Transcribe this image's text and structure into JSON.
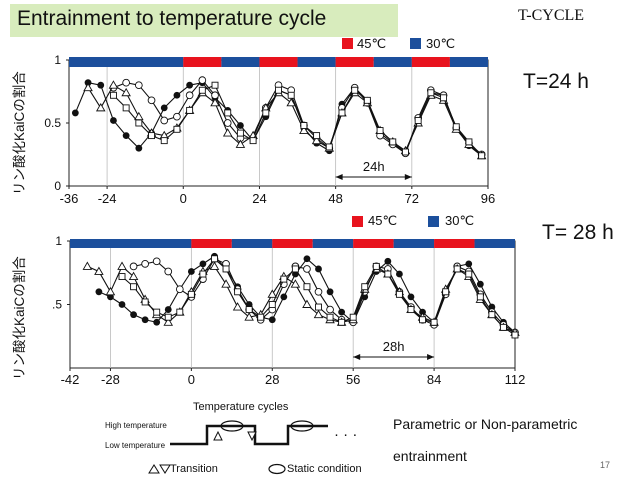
{
  "slide": {
    "title": "Entrainment to temperature cycle",
    "tag": "T-CYCLE",
    "page_number": "17",
    "bottom_text_1": "Parametric or Non-parametric",
    "bottom_text_2": "entrainment",
    "colors": {
      "title_bg": "#d8ecbd",
      "hot": "#e8131e",
      "cold": "#1c4f9c"
    }
  },
  "schematic": {
    "title": "Temperature cycles",
    "high_label": "High temperature",
    "low_label": "Low temperature",
    "ellipsis": "· · ·",
    "transition_label": "Transition",
    "static_label": "Static condition",
    "transition_icon": "triangle-up-down-icon",
    "static_icon": "ellipse-icon"
  },
  "chart_data": [
    {
      "type": "line",
      "period_label": "T=24 h",
      "ylabel": "リン酸化KaiCの割合",
      "legend": [
        {
          "label": "45℃",
          "color": "#e8131e"
        },
        {
          "label": "30℃",
          "color": "#1c4f9c"
        }
      ],
      "xlim": [
        -36,
        96
      ],
      "ylim": [
        0,
        1
      ],
      "xticks": [
        "-36",
        "-24",
        "0",
        "24",
        "48",
        "72",
        "96"
      ],
      "yticks": [
        "0",
        "0.5",
        "1"
      ],
      "temperature_bar": [
        {
          "from": -36,
          "to": 0,
          "state": "30℃"
        },
        {
          "from": 0,
          "to": 12,
          "state": "45℃"
        },
        {
          "from": 12,
          "to": 24,
          "state": "30℃"
        },
        {
          "from": 24,
          "to": 36,
          "state": "45℃"
        },
        {
          "from": 36,
          "to": 48,
          "state": "30℃"
        },
        {
          "from": 48,
          "to": 60,
          "state": "45℃"
        },
        {
          "from": 60,
          "to": 72,
          "state": "30℃"
        },
        {
          "from": 72,
          "to": 84,
          "state": "45℃"
        },
        {
          "from": 84,
          "to": 96,
          "state": "30℃"
        }
      ],
      "period_arrow": {
        "from": 48,
        "to": 72,
        "label": "24h"
      },
      "series": [
        {
          "marker": "filled-circle",
          "x": [
            -34,
            -30,
            -26,
            -22,
            -18,
            -14,
            -10,
            -6,
            -2,
            2,
            6,
            10,
            14,
            18,
            22,
            26,
            30,
            34,
            38,
            42,
            46,
            50,
            54,
            58,
            62,
            66,
            70,
            74,
            78,
            82,
            86,
            90,
            94
          ],
          "y": [
            0.58,
            0.82,
            0.8,
            0.52,
            0.4,
            0.3,
            0.42,
            0.62,
            0.72,
            0.8,
            0.82,
            0.7,
            0.6,
            0.48,
            0.36,
            0.55,
            0.76,
            0.72,
            0.46,
            0.34,
            0.28,
            0.65,
            0.78,
            0.68,
            0.42,
            0.34,
            0.26,
            0.52,
            0.74,
            0.72,
            0.46,
            0.32,
            0.24
          ]
        },
        {
          "marker": "open-circle",
          "x": [
            -22,
            -18,
            -14,
            -10,
            -6,
            -2,
            2,
            6,
            10,
            14,
            18,
            22,
            26,
            30,
            34,
            38,
            42,
            46,
            50,
            54,
            58,
            62,
            66,
            70,
            74,
            78,
            82,
            86,
            90,
            94
          ],
          "y": [
            0.78,
            0.82,
            0.8,
            0.68,
            0.52,
            0.55,
            0.72,
            0.84,
            0.72,
            0.5,
            0.38,
            0.38,
            0.62,
            0.8,
            0.76,
            0.48,
            0.38,
            0.3,
            0.62,
            0.78,
            0.66,
            0.4,
            0.33,
            0.26,
            0.54,
            0.76,
            0.72,
            0.46,
            0.34,
            0.25
          ]
        },
        {
          "marker": "open-triangle",
          "x": [
            -30,
            -26,
            -22,
            -18,
            -14,
            -10,
            -6,
            -2,
            2,
            6,
            10,
            14,
            18,
            22,
            26,
            30,
            34,
            38,
            42,
            46,
            50,
            54,
            58,
            62,
            66,
            70,
            74,
            78,
            82,
            86,
            90,
            94
          ],
          "y": [
            0.78,
            0.62,
            0.8,
            0.74,
            0.55,
            0.42,
            0.4,
            0.46,
            0.6,
            0.74,
            0.66,
            0.42,
            0.33,
            0.4,
            0.62,
            0.74,
            0.66,
            0.44,
            0.36,
            0.3,
            0.58,
            0.74,
            0.66,
            0.44,
            0.35,
            0.28,
            0.5,
            0.72,
            0.68,
            0.45,
            0.33,
            0.24
          ]
        },
        {
          "marker": "open-square",
          "x": [
            -22,
            -18,
            -14,
            -10,
            -6,
            -2,
            2,
            6,
            10,
            14,
            18,
            22,
            26,
            30,
            34,
            38,
            42,
            46,
            50,
            54,
            58,
            62,
            66,
            70,
            74,
            78,
            82,
            86,
            90,
            94
          ],
          "y": [
            0.72,
            0.62,
            0.5,
            0.4,
            0.36,
            0.45,
            0.6,
            0.76,
            0.8,
            0.58,
            0.42,
            0.36,
            0.58,
            0.76,
            0.72,
            0.48,
            0.4,
            0.31,
            0.58,
            0.76,
            0.68,
            0.44,
            0.35,
            0.27,
            0.52,
            0.74,
            0.7,
            0.47,
            0.35,
            0.24
          ]
        }
      ]
    },
    {
      "type": "line",
      "period_label": "T= 28 h",
      "ylabel": "リン酸化KaiCの割合",
      "legend": [
        {
          "label": "45℃",
          "color": "#e8131e"
        },
        {
          "label": "30℃",
          "color": "#1c4f9c"
        }
      ],
      "xlim": [
        -42,
        112
      ],
      "ylim": [
        0,
        1
      ],
      "xticks": [
        "-42",
        "-28",
        "0",
        "28",
        "56",
        "84",
        "112"
      ],
      "yticks": [
        ".5",
        "1"
      ],
      "temperature_bar": [
        {
          "from": -42,
          "to": 0,
          "state": "30℃"
        },
        {
          "from": 0,
          "to": 14,
          "state": "45℃"
        },
        {
          "from": 14,
          "to": 28,
          "state": "30℃"
        },
        {
          "from": 28,
          "to": 42,
          "state": "45℃"
        },
        {
          "from": 42,
          "to": 56,
          "state": "30℃"
        },
        {
          "from": 56,
          "to": 70,
          "state": "45℃"
        },
        {
          "from": 70,
          "to": 84,
          "state": "30℃"
        },
        {
          "from": 84,
          "to": 98,
          "state": "45℃"
        },
        {
          "from": 98,
          "to": 112,
          "state": "30℃"
        }
      ],
      "period_arrow": {
        "from": 56,
        "to": 84,
        "label": "28h"
      },
      "series": [
        {
          "marker": "filled-circle",
          "x": [
            -32,
            -28,
            -24,
            -20,
            -16,
            -12,
            -8,
            -4,
            0,
            4,
            8,
            12,
            16,
            20,
            24,
            28,
            32,
            36,
            40,
            44,
            48,
            52,
            56,
            60,
            64,
            68,
            72,
            76,
            80,
            84,
            88,
            92,
            96,
            100,
            104,
            108,
            112
          ],
          "y": [
            0.6,
            0.56,
            0.5,
            0.42,
            0.38,
            0.36,
            0.46,
            0.62,
            0.76,
            0.82,
            0.88,
            0.78,
            0.64,
            0.5,
            0.4,
            0.38,
            0.56,
            0.74,
            0.86,
            0.78,
            0.6,
            0.44,
            0.36,
            0.56,
            0.76,
            0.84,
            0.74,
            0.56,
            0.44,
            0.36,
            0.58,
            0.8,
            0.82,
            0.66,
            0.48,
            0.36,
            0.28
          ]
        },
        {
          "marker": "open-circle",
          "x": [
            -20,
            -16,
            -12,
            -8,
            -4,
            0,
            4,
            8,
            12,
            16,
            20,
            24,
            28,
            32,
            36,
            40,
            44,
            48,
            52,
            56,
            60,
            64,
            68,
            72,
            76,
            80,
            84,
            88,
            92,
            96,
            100,
            104,
            108,
            112
          ],
          "y": [
            0.8,
            0.82,
            0.84,
            0.76,
            0.62,
            0.56,
            0.7,
            0.86,
            0.82,
            0.62,
            0.46,
            0.38,
            0.46,
            0.66,
            0.8,
            0.78,
            0.6,
            0.46,
            0.38,
            0.36,
            0.6,
            0.8,
            0.78,
            0.6,
            0.48,
            0.38,
            0.34,
            0.58,
            0.8,
            0.76,
            0.58,
            0.44,
            0.34,
            0.28
          ]
        },
        {
          "marker": "open-triangle",
          "x": [
            -36,
            -32,
            -28,
            -24,
            -20,
            -16,
            -12,
            -8,
            -4,
            0,
            4,
            8,
            12,
            16,
            20,
            24,
            28,
            32,
            36,
            40,
            44,
            48,
            52,
            56,
            60,
            64,
            68,
            72,
            76,
            80,
            84,
            88,
            92,
            96,
            100,
            104,
            108,
            112
          ],
          "y": [
            0.8,
            0.76,
            0.6,
            0.8,
            0.72,
            0.54,
            0.42,
            0.36,
            0.44,
            0.6,
            0.76,
            0.8,
            0.66,
            0.48,
            0.4,
            0.42,
            0.58,
            0.72,
            0.66,
            0.5,
            0.42,
            0.38,
            0.36,
            0.38,
            0.62,
            0.78,
            0.74,
            0.6,
            0.46,
            0.4,
            0.36,
            0.62,
            0.78,
            0.72,
            0.54,
            0.42,
            0.32,
            0.28
          ]
        },
        {
          "marker": "open-square",
          "x": [
            -24,
            -20,
            -16,
            -12,
            -8,
            -4,
            0,
            4,
            8,
            12,
            16,
            20,
            24,
            28,
            32,
            36,
            40,
            44,
            48,
            52,
            56,
            60,
            64,
            68,
            72,
            76,
            80,
            84,
            88,
            92,
            96,
            100,
            104,
            108,
            112
          ],
          "y": [
            0.72,
            0.64,
            0.52,
            0.44,
            0.4,
            0.44,
            0.58,
            0.74,
            0.86,
            0.78,
            0.6,
            0.46,
            0.4,
            0.5,
            0.7,
            0.78,
            0.64,
            0.48,
            0.4,
            0.36,
            0.4,
            0.64,
            0.8,
            0.74,
            0.58,
            0.46,
            0.38,
            0.36,
            0.6,
            0.78,
            0.74,
            0.56,
            0.42,
            0.32,
            0.26
          ]
        }
      ]
    }
  ]
}
